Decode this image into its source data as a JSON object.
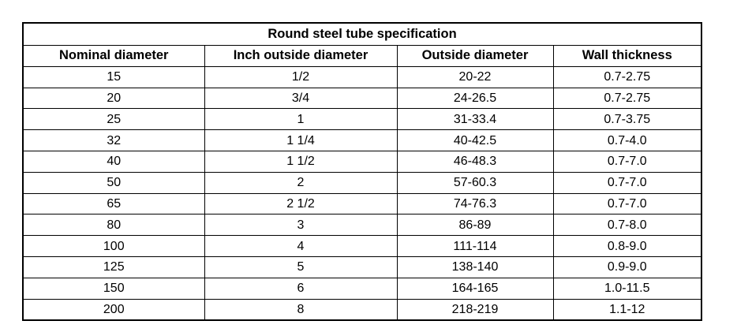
{
  "table": {
    "title": "Round steel tube specification",
    "header": [
      "Nominal diameter",
      "Inch outside diameter",
      "Outside diameter",
      "Wall thickness"
    ],
    "rows": [
      [
        "15",
        "1/2",
        "20-22",
        "0.7-2.75"
      ],
      [
        "20",
        "3/4",
        "24-26.5",
        "0.7-2.75"
      ],
      [
        "25",
        "1",
        "31-33.4",
        "0.7-3.75"
      ],
      [
        "32",
        "1 1/4",
        "40-42.5",
        "0.7-4.0"
      ],
      [
        "40",
        "1 1/2",
        "46-48.3",
        "0.7-7.0"
      ],
      [
        "50",
        "2",
        "57-60.3",
        "0.7-7.0"
      ],
      [
        "65",
        "2 1/2",
        "74-76.3",
        "0.7-7.0"
      ],
      [
        "80",
        "3",
        "86-89",
        "0.7-8.0"
      ],
      [
        "100",
        "4",
        "111-114",
        "0.8-9.0"
      ],
      [
        "125",
        "5",
        "138-140",
        "0.9-9.0"
      ],
      [
        "150",
        "6",
        "164-165",
        "1.0-11.5"
      ],
      [
        "200",
        "8",
        "218-219",
        "1.1-12"
      ]
    ]
  }
}
